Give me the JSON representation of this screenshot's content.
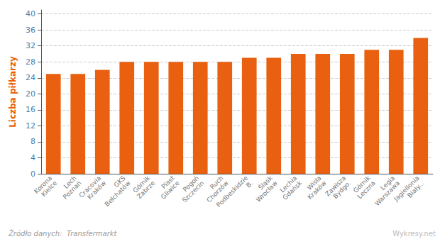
{
  "chart_data": {
    "type": "bar",
    "categories": [
      "Korona\nKielce",
      "Lech\nPoznań",
      "Cracovia\nKraków",
      "GKS\nBełchatów",
      "Górnik\nZabrze",
      "Piast\nGliwice",
      "Pogoń\nSzczecin",
      "Ruch\nChorzów",
      "Podbeskidzie\nB.",
      "Śląsk\nWrocław",
      "Lechia\nGdańsk",
      "Wisła\nKraków",
      "Zawisza\nBydgo.",
      "Górnik\nLeczna",
      "Legia\nWarszawa",
      "Jagiellonia\nBiały..."
    ],
    "values": [
      25,
      25,
      26,
      28,
      28,
      28,
      28,
      28,
      29,
      29,
      30,
      30,
      30,
      31,
      31,
      34
    ],
    "color": "#E86010",
    "ylabel": "Liczba piłkarzy",
    "ylim": [
      0,
      41
    ],
    "yticks": [
      0,
      4,
      8,
      12,
      16,
      20,
      24,
      28,
      32,
      36,
      40
    ],
    "grid": true,
    "annotations": [
      "Źródło danych:  Transfermarkt",
      "Wykresy.net"
    ]
  }
}
